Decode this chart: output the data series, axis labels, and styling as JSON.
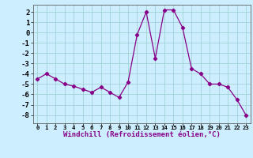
{
  "x": [
    0,
    1,
    2,
    3,
    4,
    5,
    6,
    7,
    8,
    9,
    10,
    11,
    12,
    13,
    14,
    15,
    16,
    17,
    18,
    19,
    20,
    21,
    22,
    23
  ],
  "y": [
    -4.5,
    -4.0,
    -4.5,
    -5.0,
    -5.2,
    -5.5,
    -5.8,
    -5.3,
    -5.8,
    -6.3,
    -4.8,
    -0.2,
    2.0,
    -2.5,
    2.2,
    2.2,
    0.5,
    -3.5,
    -4.0,
    -5.0,
    -5.0,
    -5.3,
    -6.5,
    -8.0
  ],
  "line_color": "#880088",
  "marker": "D",
  "marker_size": 2.2,
  "bg_color": "#cceeff",
  "grid_color": "#99cccc",
  "xlabel": "Windchill (Refroidissement éolien,°C)",
  "ylabel": "",
  "xlim": [
    -0.5,
    23.5
  ],
  "ylim": [
    -8.8,
    2.7
  ],
  "yticks": [
    -8,
    -7,
    -6,
    -5,
    -4,
    -3,
    -2,
    -1,
    0,
    1,
    2
  ],
  "xticks": [
    0,
    1,
    2,
    3,
    4,
    5,
    6,
    7,
    8,
    9,
    10,
    11,
    12,
    13,
    14,
    15,
    16,
    17,
    18,
    19,
    20,
    21,
    22,
    23
  ],
  "xlabel_fontsize": 6.5,
  "xtick_fontsize": 5.2,
  "ytick_fontsize": 6.5,
  "line_width": 0.9
}
